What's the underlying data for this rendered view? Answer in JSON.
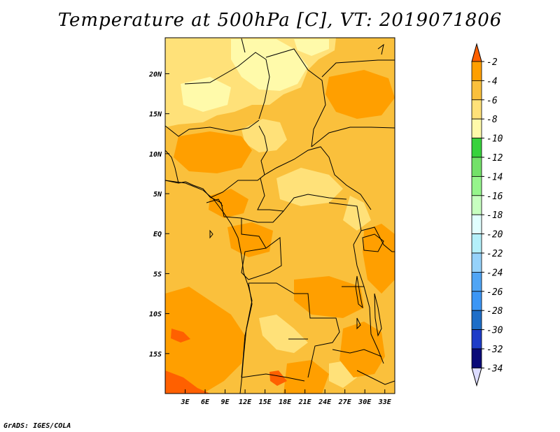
{
  "title": "Temperature at 500hPa [C], VT: 2019071806",
  "credit": "GrADS: IGES/COLA",
  "map": {
    "lon_range": [
      0,
      34.5
    ],
    "lat_range": [
      -20,
      24.5
    ],
    "lon_ticks": [
      {
        "value": 3,
        "label": "3E"
      },
      {
        "value": 6,
        "label": "6E"
      },
      {
        "value": 9,
        "label": "9E"
      },
      {
        "value": 12,
        "label": "12E"
      },
      {
        "value": 15,
        "label": "15E"
      },
      {
        "value": 18,
        "label": "18E"
      },
      {
        "value": 21,
        "label": "21E"
      },
      {
        "value": 24,
        "label": "24E"
      },
      {
        "value": 27,
        "label": "27E"
      },
      {
        "value": 30,
        "label": "30E"
      },
      {
        "value": 33,
        "label": "33E"
      }
    ],
    "lat_ticks": [
      {
        "value": 20,
        "label": "20N"
      },
      {
        "value": 15,
        "label": "15N"
      },
      {
        "value": 10,
        "label": "10N"
      },
      {
        "value": 5,
        "label": "5N"
      },
      {
        "value": 0,
        "label": "EQ"
      },
      {
        "value": -5,
        "label": "5S"
      },
      {
        "value": -10,
        "label": "10S"
      },
      {
        "value": -15,
        "label": "15S"
      }
    ],
    "base_color": "#fac03c"
  },
  "colorbar": {
    "levels": [
      {
        "label": "-2",
        "color": "#ff6000"
      },
      {
        "label": "-4",
        "color": "#ff9f00"
      },
      {
        "label": "-6",
        "color": "#fac03c"
      },
      {
        "label": "-8",
        "color": "#ffe179"
      },
      {
        "label": "-10",
        "color": "#fffaaa"
      },
      {
        "label": "-12",
        "color": "#37d23c"
      },
      {
        "label": "-14",
        "color": "#73e169"
      },
      {
        "label": "-16",
        "color": "#96f58c"
      },
      {
        "label": "-18",
        "color": "#c7ffc0"
      },
      {
        "label": "-20",
        "color": "#e1ffff"
      },
      {
        "label": "-22",
        "color": "#b4f0fa"
      },
      {
        "label": "-24",
        "color": "#96d2fa"
      },
      {
        "label": "-26",
        "color": "#50a5f5"
      },
      {
        "label": "-28",
        "color": "#3c96f5"
      },
      {
        "label": "-30",
        "color": "#1e6ec8"
      },
      {
        "label": "-32",
        "color": "#1e3cc8"
      },
      {
        "label": "-34",
        "color": "#0a0a78"
      }
    ],
    "top_color": "#ff3300",
    "bottom_color": "#dcdcff"
  }
}
